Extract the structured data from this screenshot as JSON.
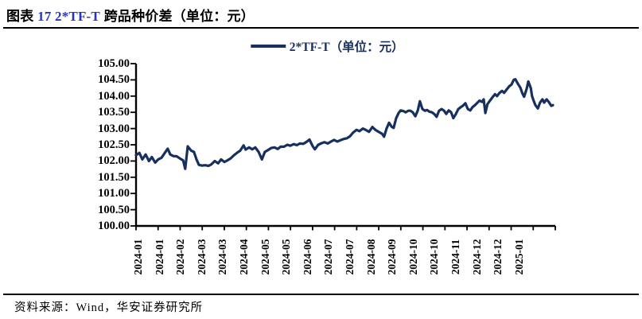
{
  "page": {
    "title_label": "图表",
    "title_highlight": "17 2*TF-T",
    "title_suffix": "跨品种价差（单位：元）",
    "source": "资料来源：Wind，华安证券研究所"
  },
  "legend": {
    "label": "2*TF-T（单位：元）"
  },
  "colors": {
    "line": "#17305E",
    "legend_text": "#17305E",
    "title_highlight": "#2434C4",
    "axis": "#000000",
    "text": "#000000"
  },
  "chart_data": {
    "type": "line",
    "title": "2*TF-T（单位：元）",
    "xlabel": "",
    "ylabel": "",
    "ylim": [
      100.0,
      105.0
    ],
    "ytick_step": 0.5,
    "grid": false,
    "legend_position": "top-center",
    "y_ticks": [
      "105.00",
      "104.50",
      "104.00",
      "103.50",
      "103.00",
      "102.50",
      "102.00",
      "101.50",
      "101.00",
      "100.50",
      "100.00"
    ],
    "x_ticks": [
      "2024-01",
      "2024-01",
      "2024-02",
      "2024-03",
      "2024-03",
      "2024-04",
      "2024-05",
      "2024-05",
      "2024-06",
      "2024-07",
      "2024-07",
      "2024-08",
      "2024-09",
      "2024-10",
      "2024-10",
      "2024-11",
      "2024-12",
      "2024-12",
      "2025-01"
    ],
    "series": [
      {
        "name": "2*TF-T（单位：元）",
        "color": "#17305E",
        "points": [
          [
            0.0,
            102.18
          ],
          [
            0.008,
            102.25
          ],
          [
            0.015,
            102.05
          ],
          [
            0.023,
            102.2
          ],
          [
            0.031,
            102.0
          ],
          [
            0.038,
            102.12
          ],
          [
            0.046,
            101.95
          ],
          [
            0.053,
            102.05
          ],
          [
            0.061,
            102.1
          ],
          [
            0.069,
            102.25
          ],
          [
            0.076,
            102.38
          ],
          [
            0.082,
            102.2
          ],
          [
            0.09,
            102.15
          ],
          [
            0.097,
            102.15
          ],
          [
            0.105,
            102.08
          ],
          [
            0.113,
            102.02
          ],
          [
            0.118,
            101.76
          ],
          [
            0.124,
            102.45
          ],
          [
            0.132,
            102.32
          ],
          [
            0.139,
            102.28
          ],
          [
            0.145,
            102.05
          ],
          [
            0.151,
            101.88
          ],
          [
            0.158,
            101.86
          ],
          [
            0.166,
            101.87
          ],
          [
            0.174,
            101.85
          ],
          [
            0.181,
            101.9
          ],
          [
            0.189,
            102.0
          ],
          [
            0.197,
            101.93
          ],
          [
            0.204,
            102.05
          ],
          [
            0.212,
            101.97
          ],
          [
            0.219,
            102.02
          ],
          [
            0.227,
            102.08
          ],
          [
            0.235,
            102.18
          ],
          [
            0.242,
            102.25
          ],
          [
            0.25,
            102.32
          ],
          [
            0.258,
            102.48
          ],
          [
            0.263,
            102.35
          ],
          [
            0.271,
            102.42
          ],
          [
            0.279,
            102.36
          ],
          [
            0.286,
            102.42
          ],
          [
            0.294,
            102.28
          ],
          [
            0.302,
            102.05
          ],
          [
            0.309,
            102.28
          ],
          [
            0.317,
            102.34
          ],
          [
            0.324,
            102.4
          ],
          [
            0.332,
            102.42
          ],
          [
            0.34,
            102.37
          ],
          [
            0.347,
            102.44
          ],
          [
            0.355,
            102.44
          ],
          [
            0.363,
            102.5
          ],
          [
            0.37,
            102.47
          ],
          [
            0.378,
            102.52
          ],
          [
            0.386,
            102.49
          ],
          [
            0.393,
            102.54
          ],
          [
            0.401,
            102.53
          ],
          [
            0.408,
            102.58
          ],
          [
            0.416,
            102.66
          ],
          [
            0.424,
            102.45
          ],
          [
            0.429,
            102.36
          ],
          [
            0.437,
            102.5
          ],
          [
            0.445,
            102.55
          ],
          [
            0.452,
            102.58
          ],
          [
            0.46,
            102.54
          ],
          [
            0.468,
            102.6
          ],
          [
            0.475,
            102.65
          ],
          [
            0.483,
            102.6
          ],
          [
            0.49,
            102.64
          ],
          [
            0.498,
            102.68
          ],
          [
            0.506,
            102.7
          ],
          [
            0.513,
            102.76
          ],
          [
            0.521,
            102.88
          ],
          [
            0.529,
            102.96
          ],
          [
            0.536,
            102.92
          ],
          [
            0.544,
            103.0
          ],
          [
            0.552,
            102.95
          ],
          [
            0.559,
            102.9
          ],
          [
            0.567,
            103.05
          ],
          [
            0.574,
            102.96
          ],
          [
            0.582,
            102.9
          ],
          [
            0.59,
            102.84
          ],
          [
            0.595,
            102.75
          ],
          [
            0.601,
            103.0
          ],
          [
            0.607,
            103.18
          ],
          [
            0.613,
            103.06
          ],
          [
            0.618,
            103.02
          ],
          [
            0.624,
            103.32
          ],
          [
            0.63,
            103.48
          ],
          [
            0.635,
            103.56
          ],
          [
            0.641,
            103.54
          ],
          [
            0.647,
            103.5
          ],
          [
            0.653,
            103.55
          ],
          [
            0.658,
            103.55
          ],
          [
            0.664,
            103.5
          ],
          [
            0.67,
            103.38
          ],
          [
            0.676,
            103.56
          ],
          [
            0.681,
            103.84
          ],
          [
            0.687,
            103.6
          ],
          [
            0.693,
            103.55
          ],
          [
            0.698,
            103.57
          ],
          [
            0.704,
            103.52
          ],
          [
            0.71,
            103.5
          ],
          [
            0.716,
            103.44
          ],
          [
            0.721,
            103.36
          ],
          [
            0.727,
            103.55
          ],
          [
            0.733,
            103.6
          ],
          [
            0.739,
            103.55
          ],
          [
            0.744,
            103.45
          ],
          [
            0.75,
            103.56
          ],
          [
            0.756,
            103.5
          ],
          [
            0.761,
            103.32
          ],
          [
            0.767,
            103.44
          ],
          [
            0.773,
            103.6
          ],
          [
            0.779,
            103.66
          ],
          [
            0.784,
            103.7
          ],
          [
            0.79,
            103.78
          ],
          [
            0.796,
            103.6
          ],
          [
            0.802,
            103.56
          ],
          [
            0.807,
            103.66
          ],
          [
            0.813,
            103.72
          ],
          [
            0.819,
            103.8
          ],
          [
            0.824,
            103.86
          ],
          [
            0.83,
            103.82
          ],
          [
            0.834,
            103.9
          ],
          [
            0.838,
            103.48
          ],
          [
            0.843,
            103.75
          ],
          [
            0.849,
            103.86
          ],
          [
            0.855,
            103.96
          ],
          [
            0.861,
            104.06
          ],
          [
            0.866,
            104.0
          ],
          [
            0.872,
            104.1
          ],
          [
            0.878,
            104.16
          ],
          [
            0.883,
            104.1
          ],
          [
            0.889,
            104.2
          ],
          [
            0.895,
            104.3
          ],
          [
            0.901,
            104.36
          ],
          [
            0.906,
            104.5
          ],
          [
            0.91,
            104.52
          ],
          [
            0.916,
            104.38
          ],
          [
            0.922,
            104.26
          ],
          [
            0.927,
            104.08
          ],
          [
            0.931,
            103.98
          ],
          [
            0.937,
            104.22
          ],
          [
            0.941,
            104.45
          ],
          [
            0.947,
            104.25
          ],
          [
            0.95,
            104.0
          ],
          [
            0.954,
            103.85
          ],
          [
            0.958,
            103.72
          ],
          [
            0.964,
            103.62
          ],
          [
            0.969,
            103.8
          ],
          [
            0.975,
            103.9
          ],
          [
            0.979,
            103.8
          ],
          [
            0.985,
            103.9
          ],
          [
            0.99,
            103.82
          ],
          [
            0.996,
            103.7
          ],
          [
            1.0,
            103.72
          ]
        ]
      }
    ]
  }
}
